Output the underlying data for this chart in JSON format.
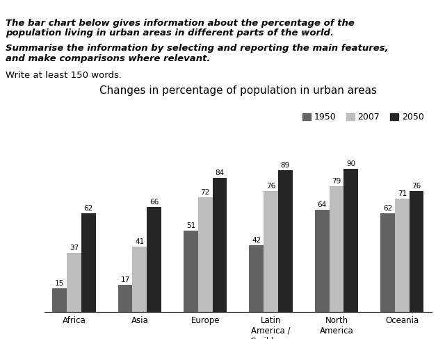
{
  "title": "Changes in percentage of population in urban areas",
  "header_line1": "The bar chart below gives information about the percentage of the",
  "header_line2": "population living in urban areas in different parts of the world.",
  "header_line3": "Summarise the information by selecting and reporting the main features,",
  "header_line4": "and make comparisons where relevant.",
  "header_line5": "Write at least 150 words.",
  "categories": [
    "Africa",
    "Asia",
    "Europe",
    "Latin\nAmerica /\nCaribbean",
    "North\nAmerica",
    "Oceania"
  ],
  "years": [
    "1950",
    "2007",
    "2050"
  ],
  "colors_1950": "#636363",
  "colors_2007": "#bdbdbd",
  "colors_2050": "#252525",
  "values": {
    "1950": [
      15,
      17,
      51,
      42,
      64,
      62
    ],
    "2007": [
      37,
      41,
      72,
      76,
      79,
      71
    ],
    "2050": [
      62,
      66,
      84,
      89,
      90,
      76
    ]
  },
  "ylim": [
    0,
    100
  ],
  "bar_width": 0.22
}
